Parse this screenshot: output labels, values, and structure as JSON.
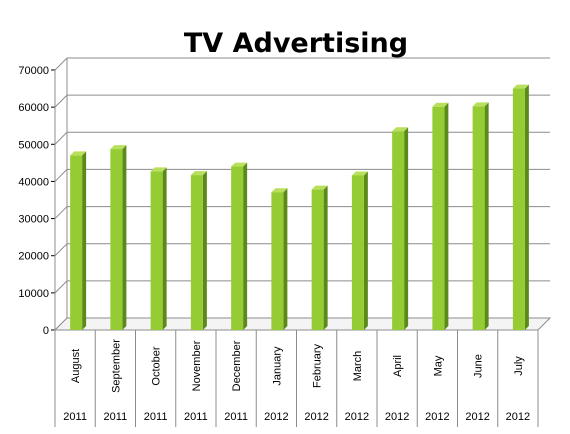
{
  "chart_data": {
    "type": "bar",
    "title": "TV Advertising",
    "xlabel": "",
    "ylabel": "",
    "ylim": [
      0,
      70000
    ],
    "y_ticks": [
      "0",
      "10000",
      "20000",
      "30000",
      "40000",
      "50000",
      "60000",
      "70000"
    ],
    "categories": [
      "August",
      "September",
      "October",
      "November",
      "December",
      "January",
      "February",
      "March",
      "April",
      "May",
      "June",
      "July"
    ],
    "years": [
      "2011",
      "2011",
      "2011",
      "2011",
      "2011",
      "2012",
      "2012",
      "2012",
      "2012",
      "2012",
      "2012",
      "2012"
    ],
    "values": [
      47000,
      48700,
      42700,
      41700,
      44000,
      37100,
      37800,
      41600,
      53500,
      60100,
      60200,
      65000
    ],
    "grid": true,
    "legend": "none",
    "colors": {
      "bar_front": "#96cc33",
      "bar_side": "#5c8a1a",
      "bar_top": "#b8e05c",
      "grid": "#8c8c8c",
      "wall": "#ffffff"
    }
  }
}
